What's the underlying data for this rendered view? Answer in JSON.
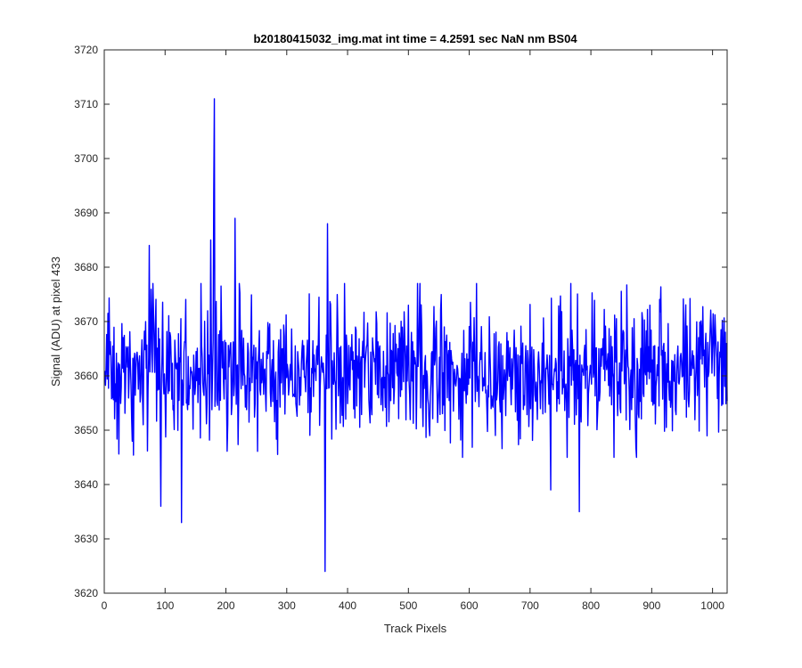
{
  "chart_data": {
    "type": "line",
    "title": "b20180415032_img.mat int time = 4.2591 sec  NaN nm BS04",
    "xlabel": "Track Pixels",
    "ylabel": "Signal (ADU) at pixel 433",
    "xlim": [
      0,
      1024
    ],
    "ylim": [
      3620,
      3720
    ],
    "xticks": [
      0,
      100,
      200,
      300,
      400,
      500,
      600,
      700,
      800,
      900,
      1000
    ],
    "yticks": [
      3620,
      3630,
      3640,
      3650,
      3660,
      3670,
      3680,
      3690,
      3700,
      3710,
      3720
    ],
    "grid": false,
    "legend": "none",
    "series": [
      {
        "color": "#0000ff",
        "n_points": 1024,
        "x_start": 1,
        "x_end": 1024,
        "mean": 3661,
        "approx_noise_range": [
          3645,
          3677
        ],
        "notable_points": [
          {
            "x": 181,
            "y": 3711
          },
          {
            "x": 180,
            "y": 3694
          },
          {
            "x": 215,
            "y": 3689
          },
          {
            "x": 367,
            "y": 3688
          },
          {
            "x": 175,
            "y": 3685
          },
          {
            "x": 74,
            "y": 3684
          },
          {
            "x": 363,
            "y": 3624
          },
          {
            "x": 127,
            "y": 3633
          },
          {
            "x": 93,
            "y": 3636
          },
          {
            "x": 781,
            "y": 3635
          },
          {
            "x": 734,
            "y": 3639
          }
        ]
      }
    ]
  }
}
